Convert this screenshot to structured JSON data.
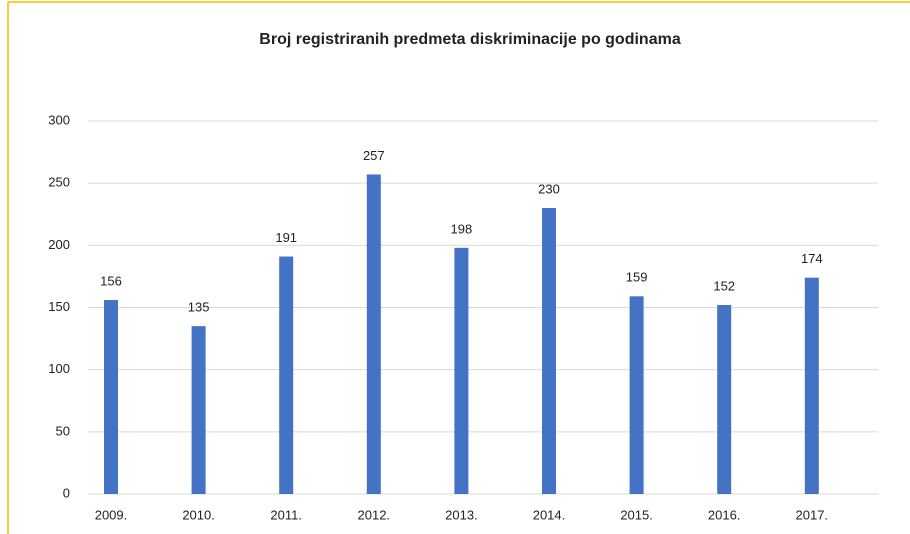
{
  "chart_data": {
    "type": "bar",
    "title": "Broj registriranih predmeta diskriminacije po godinama",
    "categories": [
      "2009.",
      "2010.",
      "2011.",
      "2012.",
      "2013.",
      "2014.",
      "2015.",
      "2016.",
      "2017."
    ],
    "values": [
      156,
      135,
      191,
      257,
      198,
      230,
      159,
      152,
      174
    ],
    "color": "#4472c4",
    "ylim": [
      0,
      300
    ],
    "yticks": [
      0,
      50,
      100,
      150,
      200,
      250,
      300
    ],
    "grid": true
  }
}
